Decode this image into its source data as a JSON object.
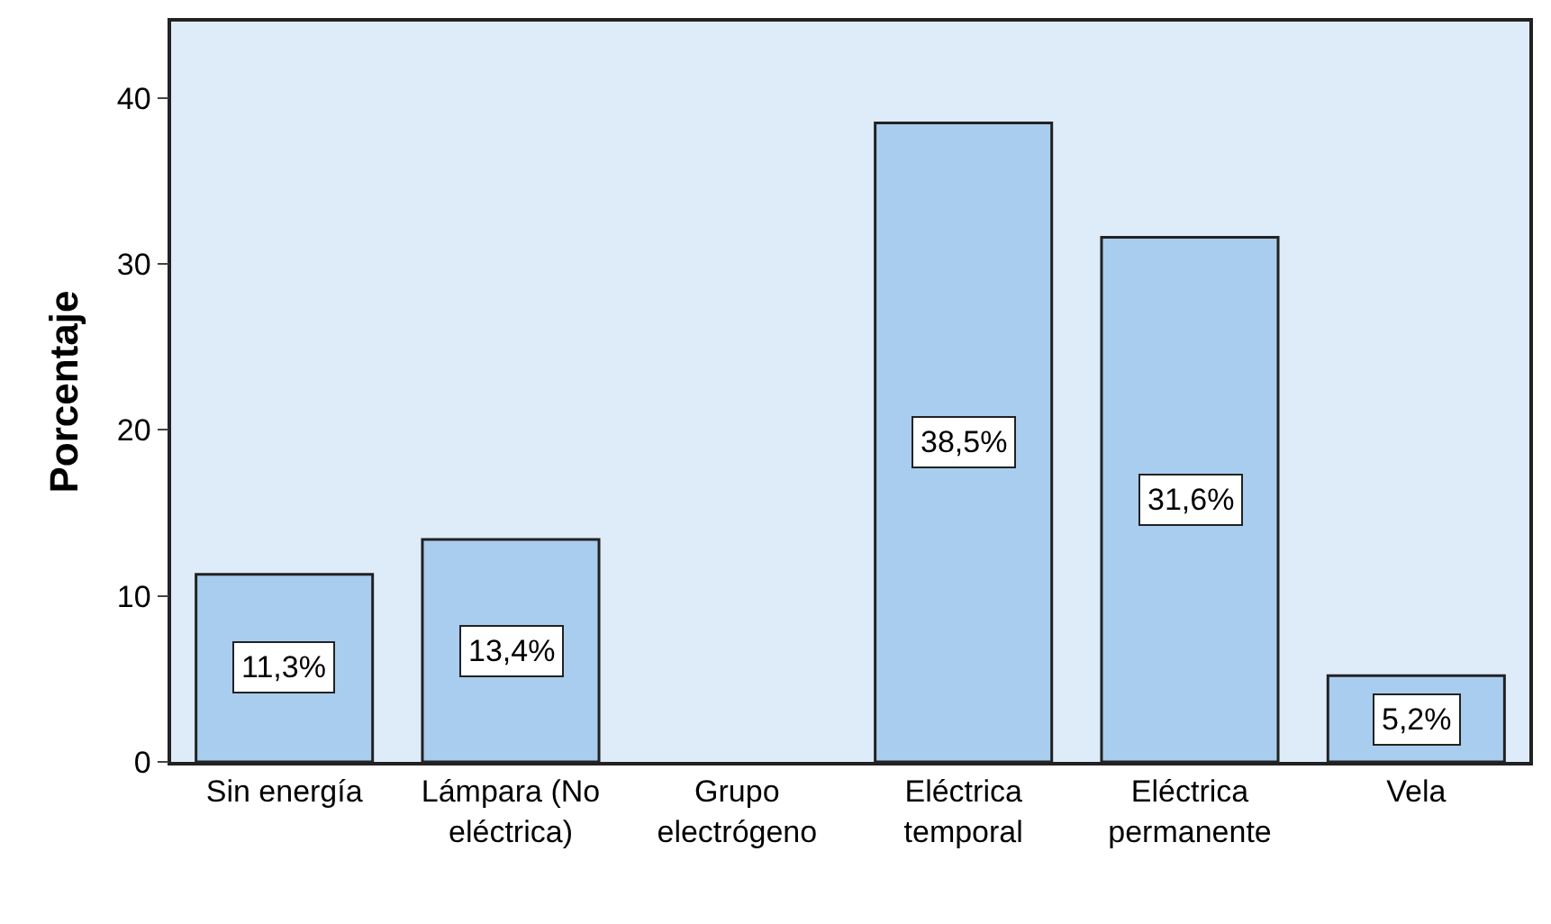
{
  "chart_data": {
    "type": "bar",
    "ylabel": "Porcentaje",
    "categories": [
      "Sin energía",
      "Lámpara (No eléctrica)",
      "Grupo electrógeno",
      "Eléctrica temporal",
      "Eléctrica permanente",
      "Vela"
    ],
    "values": [
      11.3,
      13.4,
      null,
      38.5,
      31.6,
      5.2
    ],
    "value_labels": [
      "11,3%",
      "13,4%",
      null,
      "38,5%",
      "31,6%",
      "5,2%"
    ],
    "color": "#a8cdee",
    "ylim": [
      0,
      44.6
    ],
    "yticks": [
      0,
      10,
      20,
      30,
      40
    ],
    "grid": false,
    "legend": false
  }
}
